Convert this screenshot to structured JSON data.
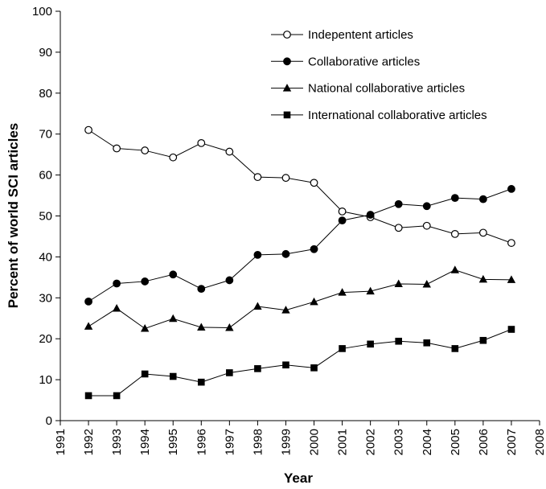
{
  "chart_data": {
    "type": "line",
    "x_label": "Year",
    "y_label": "Percent of world SCI articles",
    "xlim": [
      1991,
      2008
    ],
    "xticks": [
      1991,
      1992,
      1993,
      1994,
      1995,
      1996,
      1997,
      1998,
      1999,
      2000,
      2001,
      2002,
      2003,
      2004,
      2005,
      2006,
      2007,
      2008
    ],
    "ylim": [
      0,
      100
    ],
    "yticks": [
      0,
      10,
      20,
      30,
      40,
      50,
      60,
      70,
      80,
      90,
      100
    ],
    "grid": false,
    "legend": "top-right",
    "x": [
      1992,
      1993,
      1994,
      1995,
      1996,
      1997,
      1998,
      1999,
      2000,
      2001,
      2002,
      2003,
      2004,
      2005,
      2006,
      2007
    ],
    "series": [
      {
        "name": "Indepentent articles",
        "color": "#000000",
        "marker": "circle-open",
        "values": [
          71,
          66.5,
          66,
          64.3,
          67.8,
          65.7,
          59.5,
          59.3,
          58.1,
          51.1,
          49.7,
          47.1,
          47.6,
          45.6,
          45.9,
          43.4
        ]
      },
      {
        "name": "Collaborative articles",
        "color": "#000000",
        "marker": "circle",
        "values": [
          29.1,
          33.5,
          34.0,
          35.7,
          32.2,
          34.3,
          40.5,
          40.7,
          41.9,
          48.9,
          50.3,
          52.9,
          52.4,
          54.4,
          54.1,
          56.6
        ]
      },
      {
        "name": "National collaborative articles",
        "color": "#000000",
        "marker": "triangle",
        "values": [
          23.0,
          27.4,
          22.5,
          24.9,
          22.8,
          22.7,
          27.9,
          27.0,
          29.0,
          31.3,
          31.6,
          33.4,
          33.3,
          36.8,
          34.5,
          34.4
        ]
      },
      {
        "name": "International collaborative articles",
        "color": "#000000",
        "marker": "square",
        "values": [
          6.1,
          6.1,
          11.4,
          10.8,
          9.4,
          11.7,
          12.7,
          13.6,
          12.9,
          17.6,
          18.7,
          19.4,
          19.0,
          17.6,
          19.6,
          22.3
        ]
      }
    ]
  }
}
